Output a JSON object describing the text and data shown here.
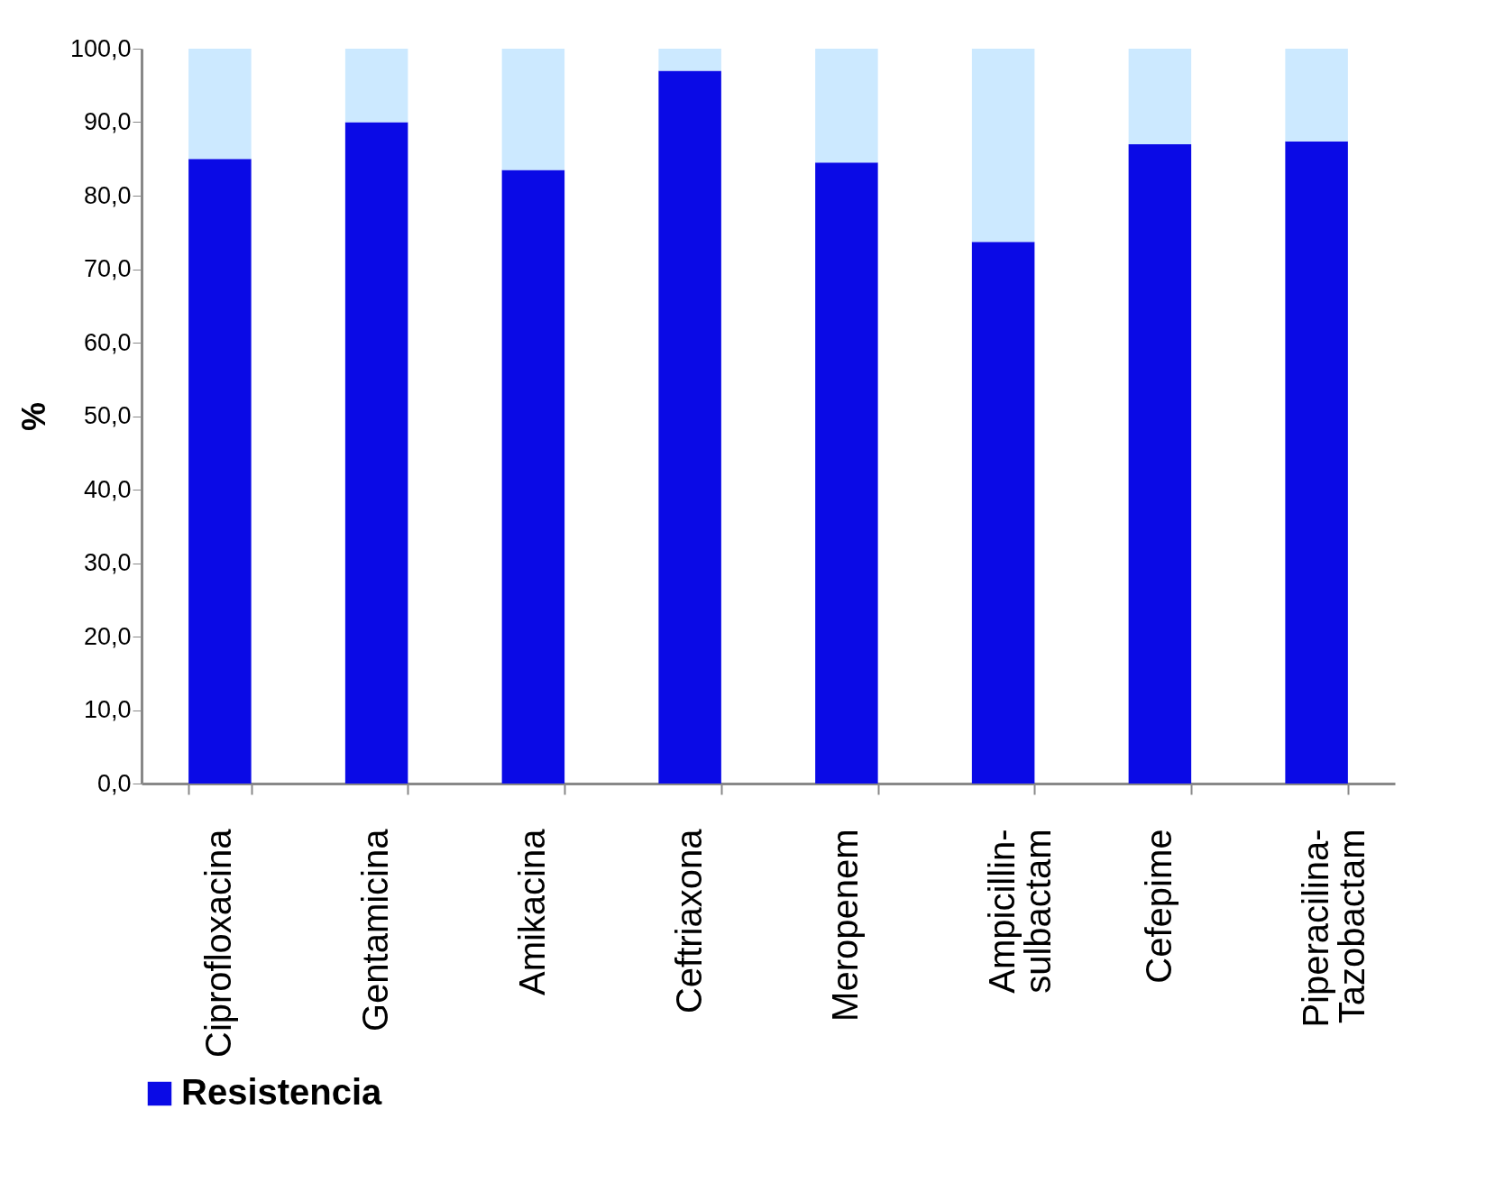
{
  "chart_data": {
    "type": "bar",
    "stacked": true,
    "ylabel": "%",
    "categories": [
      "Ciprofloxacina",
      "Gentamicina",
      "Amikacina",
      "Ceftriaxona",
      "Meropenem",
      "Ampicillin-\nsulbactam",
      "Cefepime",
      "Piperacilina-\nTazobactam"
    ],
    "series": [
      {
        "name": "Resistencia",
        "color": "#0a0ae6",
        "values": [
          85,
          90,
          83.5,
          97,
          84.5,
          73.7,
          87,
          87.4
        ]
      },
      {
        "color": "#cce9ff",
        "values": [
          15,
          10,
          16.5,
          3,
          15.5,
          26.3,
          13,
          12.6
        ]
      }
    ],
    "ylim": [
      0,
      100
    ],
    "yticks": [
      {
        "value": 0,
        "label": "0,0"
      },
      {
        "value": 10,
        "label": "10,0"
      },
      {
        "value": 20,
        "label": "20,0"
      },
      {
        "value": 30,
        "label": "30,0"
      },
      {
        "value": 40,
        "label": "40,0"
      },
      {
        "value": 50,
        "label": "50,0"
      },
      {
        "value": 60,
        "label": "60,0"
      },
      {
        "value": 70,
        "label": "70,0"
      },
      {
        "value": 80,
        "label": "80,0"
      },
      {
        "value": 90,
        "label": "90,0"
      },
      {
        "value": 100,
        "label": "100,0"
      }
    ],
    "grid": false,
    "legend": "bottom"
  }
}
